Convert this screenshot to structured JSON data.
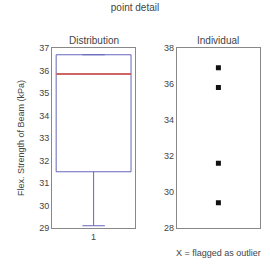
{
  "title": "point detail",
  "chart_data": [
    {
      "type": "box",
      "title": "Distribution",
      "ylabel": "Flex. Strength of Beam (kPa)",
      "categories": [
        "1"
      ],
      "q1": [
        31.5
      ],
      "q3": [
        36.7
      ],
      "median": [
        35.85
      ],
      "whisker_low": [
        29.1
      ],
      "color": "#6666bb",
      "median_color": "#cc6666",
      "ylim": [
        29,
        37
      ],
      "yticks": [
        29,
        30,
        31,
        32,
        33,
        34,
        35,
        36,
        37
      ],
      "grid": false
    },
    {
      "type": "scatter",
      "title": "Individual",
      "xlabel": "X = flagged as outlier",
      "values": [
        36.9,
        35.8,
        31.6,
        29.4
      ],
      "color": "#111111",
      "marker": "square",
      "ylim": [
        28,
        38
      ],
      "yticks": [
        28,
        30,
        32,
        34,
        36,
        38
      ],
      "grid": false,
      "tick_labels": "y"
    }
  ]
}
